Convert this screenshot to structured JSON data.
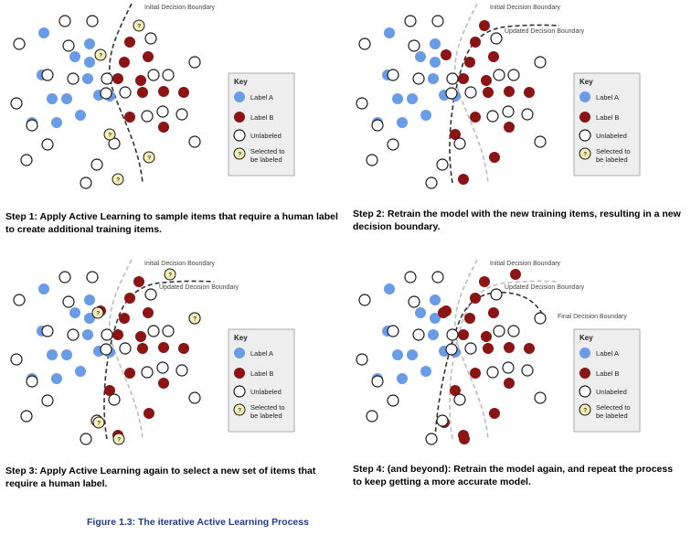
{
  "key": {
    "title": "Key",
    "label_a": "Label A",
    "label_b": "Label B",
    "unlabeled": "Unlabeled",
    "selected_line1": "Selected to",
    "selected_line2": "be labeled"
  },
  "boundaries": {
    "initial": "Initial Decision Boundary",
    "updated": "Updated Decision Boundary",
    "final": "Final Decision Boundary"
  },
  "question_mark": "?",
  "captions": {
    "step1_label": "Step 1:",
    "step1_text": " Apply Active Learning to sample items that require a human label to create additional training items.",
    "step2_label": "Step 2:",
    "step2_text": " Retrain the model with the new training items, resulting in a new decision boundary.",
    "step3_label": "Step 3:",
    "step3_text": " Apply Active Learning again to select a new set of items that require a human label.",
    "step4_label": "Step 4: (and beyond):",
    "step4_text": " Retrain the model again, and repeat the process to keep getting a more accurate model."
  },
  "figure_caption": "Figure 1.3: The iterative Active Learning Process",
  "colors": {
    "label_a": "#6a9be6",
    "label_b": "#8b1414",
    "unlabeled_stroke": "#1a1a1a",
    "selected_fill": "#f5eeb8",
    "figure_caption": "#1f3b8c"
  }
}
